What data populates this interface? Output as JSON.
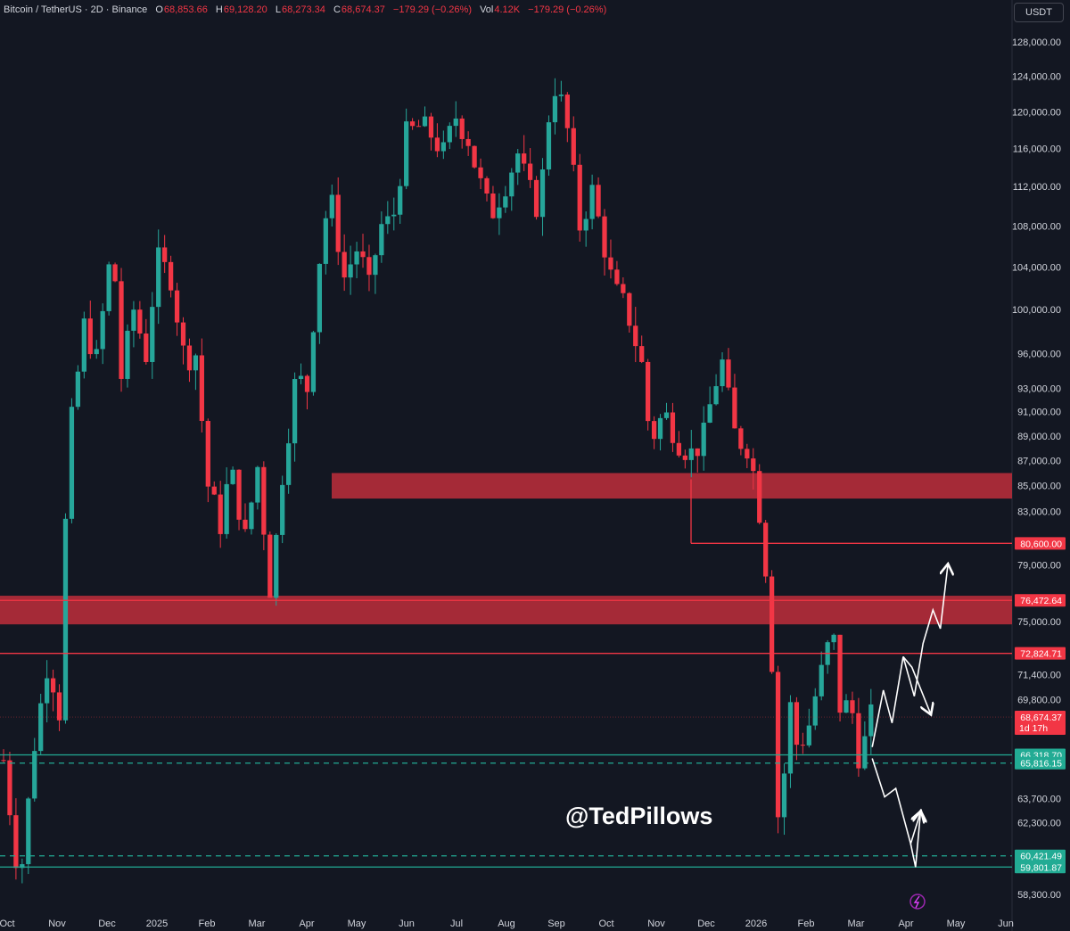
{
  "header": {
    "symbol": "Bitcoin / TetherUS",
    "interval": "2D",
    "exchange": "Binance",
    "open_key": "O",
    "open": "68,853.66",
    "high_key": "H",
    "high": "69,128.20",
    "low_key": "L",
    "low": "68,273.34",
    "close_key": "C",
    "close": "68,674.37",
    "change": "−179.29 (−0.26%)",
    "vol_key": "Vol",
    "vol": "4.12K",
    "vol_change": "−179.29 (−0.26%)"
  },
  "currency_label": "USDT",
  "watermark": "@TedPillows",
  "colors": {
    "background": "#131722",
    "up": "#26a69a",
    "down": "#f23645",
    "zone": "#b22c3a",
    "support_line": "#22ab94",
    "resistance_line": "#f23645",
    "arrow": "#ffffff"
  },
  "chart_data": {
    "type": "candlestick",
    "x_labels": [
      "Oct",
      "Nov",
      "Dec",
      "2025",
      "Feb",
      "Mar",
      "Apr",
      "May",
      "Jun",
      "Jul",
      "Aug",
      "Sep",
      "Oct",
      "Nov",
      "Dec",
      "2026",
      "Feb",
      "Mar",
      "Apr",
      "May",
      "Jun"
    ],
    "y_ticks": [
      "128,000.00",
      "124,000.00",
      "120,000.00",
      "116,000.00",
      "112,000.00",
      "108,000.00",
      "104,000.00",
      "100,000.00",
      "96,000.00",
      "93,000.00",
      "91,000.00",
      "89,000.00",
      "87,000.00",
      "85,000.00",
      "83,000.00",
      "79,000.00",
      "75,000.00",
      "71,400.00",
      "69,800.00",
      "63,700.00",
      "62,300.00",
      "58,300.00"
    ],
    "y_scale": "log",
    "ylim": [
      57500,
      130000
    ],
    "price_path": [
      [
        0,
        66000
      ],
      [
        1.3,
        58800
      ],
      [
        2.5,
        67000
      ],
      [
        3.6,
        72500
      ],
      [
        4.5,
        69000
      ],
      [
        5.2,
        88000
      ],
      [
        6.5,
        98500
      ],
      [
        7.5,
        95500
      ],
      [
        8.8,
        106500
      ],
      [
        9.5,
        94000
      ],
      [
        10.5,
        100000
      ],
      [
        11.6,
        95500
      ],
      [
        12.3,
        105000
      ],
      [
        13.5,
        103000
      ],
      [
        14.6,
        95500
      ],
      [
        15.5,
        96000
      ],
      [
        16.5,
        85000
      ],
      [
        17.5,
        82000
      ],
      [
        18.3,
        86500
      ],
      [
        19.5,
        81000
      ],
      [
        20.5,
        86500
      ],
      [
        21.6,
        76500
      ],
      [
        22.3,
        84500
      ],
      [
        23.6,
        94000
      ],
      [
        24.5,
        93000
      ],
      [
        25.4,
        104000
      ],
      [
        26.3,
        111500
      ],
      [
        27.5,
        103000
      ],
      [
        28.6,
        106000
      ],
      [
        29.5,
        102000
      ],
      [
        30.4,
        108000
      ],
      [
        31.4,
        108500
      ],
      [
        32.5,
        117500
      ],
      [
        33.7,
        118500
      ],
      [
        34.5,
        117500
      ],
      [
        35.5,
        115500
      ],
      [
        36.5,
        119500
      ],
      [
        37.5,
        117000
      ],
      [
        38.3,
        113000
      ],
      [
        39.3,
        109000
      ],
      [
        40.4,
        112000
      ],
      [
        41.5,
        115500
      ],
      [
        42.3,
        112000
      ],
      [
        43.2,
        109500
      ],
      [
        44.3,
        123500
      ],
      [
        45.3,
        120000
      ],
      [
        46.1,
        112000
      ],
      [
        46.5,
        108000
      ],
      [
        47.5,
        111500
      ],
      [
        48.3,
        107000
      ],
      [
        49.2,
        102000
      ],
      [
        50.3,
        100000
      ],
      [
        51.5,
        95000
      ],
      [
        52.2,
        88500
      ],
      [
        53.3,
        91000
      ],
      [
        54.5,
        88500
      ],
      [
        55.4,
        87500
      ],
      [
        56.4,
        88500
      ],
      [
        57.3,
        93000
      ],
      [
        58.1,
        95500
      ],
      [
        58.8,
        89500
      ],
      [
        59.5,
        88500
      ],
      [
        60.2,
        88000
      ],
      [
        61.0,
        83000
      ],
      [
        61.8,
        76500
      ],
      [
        62.6,
        61000
      ],
      [
        63.4,
        69800
      ],
      [
        64.0,
        67000
      ],
      [
        64.8,
        67500
      ],
      [
        65.5,
        70000
      ],
      [
        66.3,
        72500
      ],
      [
        66.9,
        74500
      ],
      [
        67.6,
        68500
      ],
      [
        68.3,
        70000
      ],
      [
        69.0,
        66300
      ],
      [
        69.6,
        67300
      ],
      [
        70.0,
        68674
      ]
    ],
    "zones": [
      {
        "low": 84000,
        "high": 86000
      },
      {
        "low": 74800,
        "high": 76800
      }
    ],
    "levels": [
      {
        "label": "80,600.00",
        "value": 80600,
        "kind": "resistance",
        "style": "solid"
      },
      {
        "label": "76,472.64",
        "value": 76472.64,
        "kind": "resistance",
        "style": "solid"
      },
      {
        "label": "72,824.71",
        "value": 72824.71,
        "kind": "resistance",
        "style": "solid"
      },
      {
        "label": "66,318.70",
        "value": 66318.7,
        "kind": "support",
        "style": "solid"
      },
      {
        "label": "65,816.15",
        "value": 65816.15,
        "kind": "support",
        "style": "dashed"
      },
      {
        "label": "60,421.49",
        "value": 60421.49,
        "kind": "support",
        "style": "dashed"
      },
      {
        "label": "59,801.87",
        "value": 59801.87,
        "kind": "support",
        "style": "solid"
      }
    ],
    "last_price": {
      "label": "68,674.37",
      "countdown": "1d 17h",
      "value": 68674.37
    },
    "projections": [
      {
        "name": "bullish-path",
        "points": [
          [
            70.1,
            66800
          ],
          [
            71.0,
            70400
          ],
          [
            71.7,
            68300
          ],
          [
            72.6,
            72600
          ],
          [
            73.5,
            70000
          ],
          [
            74.2,
            73500
          ],
          [
            75.0,
            75800
          ],
          [
            75.6,
            74500
          ],
          [
            76.2,
            79000
          ]
        ]
      },
      {
        "name": "bearish-path",
        "points": [
          [
            70.1,
            66100
          ],
          [
            71.1,
            63800
          ],
          [
            72.0,
            64300
          ],
          [
            73.2,
            61100
          ],
          [
            74.0,
            62900
          ]
        ]
      }
    ]
  }
}
